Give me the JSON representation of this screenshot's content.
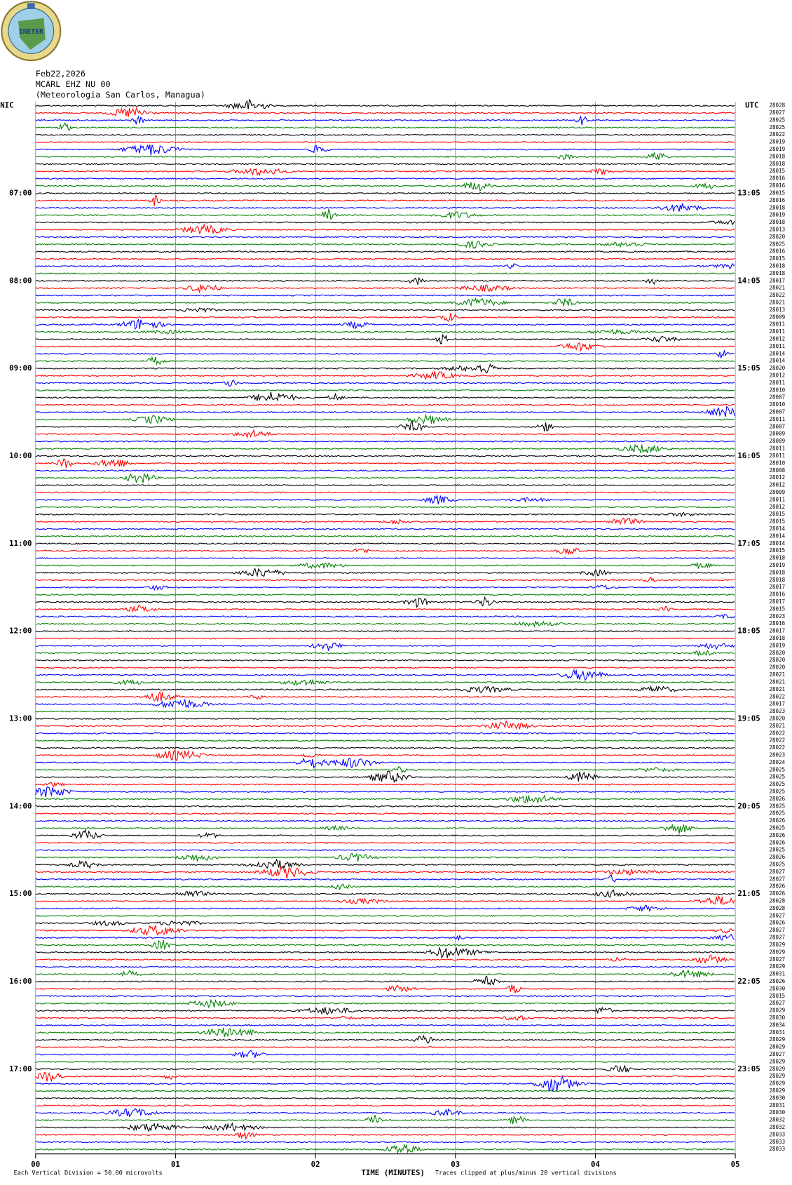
{
  "chart_data": {
    "type": "helicorder",
    "logo_text": "INETER",
    "date": "Feb22,2026",
    "station": "MCARL EHZ NU 00",
    "location": "(Meteorologia San Carlos, Managua)",
    "left_header": "NIC",
    "right_header": "UTC",
    "left_labels": [
      "07:00",
      "08:00",
      "09:00",
      "10:00",
      "11:00",
      "12:00",
      "13:00",
      "14:00",
      "15:00",
      "16:00",
      "17:00"
    ],
    "right_labels": [
      "13:05",
      "14:05",
      "15:05",
      "16:05",
      "17:05",
      "18:05",
      "19:05",
      "20:05",
      "21:05",
      "22:05",
      "23:05"
    ],
    "label_every": 12,
    "colors": [
      "#000000",
      "#ff0000",
      "#0000ff",
      "#008000"
    ],
    "counts": [
      28028,
      28027,
      28025,
      28025,
      28022,
      28019,
      28019,
      28018,
      28018,
      28015,
      28016,
      28016,
      28015,
      28016,
      28018,
      28019,
      28018,
      28013,
      28020,
      28025,
      28016,
      28015,
      28018,
      28018,
      28017,
      28021,
      28022,
      28021,
      28013,
      28009,
      28011,
      28011,
      28012,
      28011,
      28014,
      28014,
      28020,
      28012,
      28011,
      28010,
      28007,
      28010,
      28007,
      28011,
      28007,
      28009,
      28009,
      28011,
      28011,
      28010,
      28008,
      28012,
      28012,
      28009,
      28011,
      28012,
      28015,
      28015,
      28014,
      28014,
      28014,
      28015,
      28018,
      28019,
      28018,
      28018,
      28017,
      28016,
      28017,
      28015,
      28023,
      28016,
      28017,
      28018,
      28019,
      28020,
      28020,
      28020,
      28021,
      28021,
      28021,
      28022,
      28017,
      28023,
      28020,
      28021,
      28022,
      28022,
      28022,
      28023,
      28024,
      28025,
      28025,
      28025,
      28025,
      28026,
      28025,
      28025,
      28026,
      28025,
      28026,
      28026,
      28025,
      28026,
      28025,
      28027,
      28027,
      28026,
      28026,
      28028,
      28028,
      28027,
      28026,
      28027,
      28027,
      28029,
      28029,
      28027,
      28029,
      28031,
      28026,
      28030,
      28015,
      28027,
      28029,
      28030,
      28034,
      28031,
      28029,
      28029,
      28027,
      28029,
      28029,
      28029,
      28029,
      28029,
      28030,
      28031,
      28030,
      28032,
      28032,
      28033,
      28033,
      28033
    ],
    "xlim": [
      0,
      5
    ],
    "xticks": [
      {
        "value": 0,
        "label": "00"
      },
      {
        "value": 1,
        "label": "01"
      },
      {
        "value": 2,
        "label": "02"
      },
      {
        "value": 3,
        "label": "03"
      },
      {
        "value": 4,
        "label": "04"
      },
      {
        "value": 5,
        "label": "05"
      }
    ],
    "xlabel": "TIME (MINUTES)",
    "scale_note": "Each Vertical Division =    50.00 microvolts",
    "clip_note": "Traces clipped at plus/minus 20 vertical divisions",
    "grid": true
  }
}
